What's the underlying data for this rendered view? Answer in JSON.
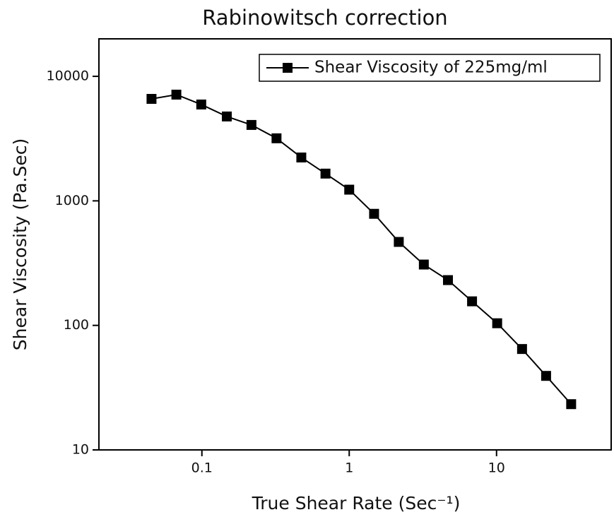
{
  "chart_data": {
    "type": "line",
    "title": "Rabinowitsch correction",
    "x_label": "True Shear Rate (Sec⁻¹)",
    "y_label": "Shear Viscosity (Pa.Sec)",
    "x": [
      0.0455,
      0.0671,
      0.099,
      0.1476,
      0.217,
      0.321,
      0.473,
      0.69,
      1.0,
      1.475,
      2.17,
      3.21,
      4.68,
      6.82,
      10.1,
      14.9,
      21.7,
      32.1
    ],
    "series": [
      {
        "name": "Shear Viscosity of 225mg/ml",
        "color": "#000000",
        "values": [
          6590,
          7130,
          5940,
          4760,
          4070,
          3180,
          2230,
          1655,
          1230,
          787,
          468,
          308,
          231,
          156,
          104,
          64.6,
          39.3,
          23.3
        ]
      }
    ],
    "xlim": [
      0.02,
      60
    ],
    "ylim": [
      10,
      20000
    ],
    "xticks": [
      0.1,
      1,
      10
    ],
    "yticks": [
      10,
      100,
      1000,
      10000
    ],
    "xscale": "log",
    "yscale": "log",
    "legend": "upper right",
    "grid": false
  }
}
